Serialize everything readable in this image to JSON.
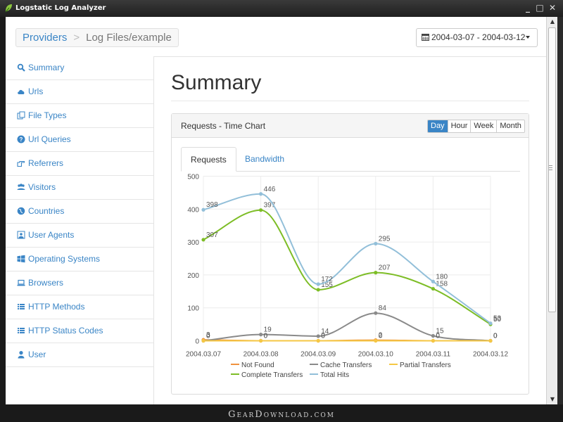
{
  "window": {
    "title": "Logstatic Log Analyzer",
    "brand_color": "#3a85c6",
    "icon": "leaf-icon"
  },
  "breadcrumb": {
    "root": "Providers",
    "separator": ">",
    "current": "Log Files/example"
  },
  "date_range": {
    "label": "2004-03-07 - 2004-03-12",
    "icon": "calendar-icon"
  },
  "sidebar": {
    "items": [
      {
        "label": "Summary",
        "icon": "search-icon"
      },
      {
        "label": "Urls",
        "icon": "cloud-icon"
      },
      {
        "label": "File Types",
        "icon": "files-icon"
      },
      {
        "label": "Url Queries",
        "icon": "question-icon"
      },
      {
        "label": "Referrers",
        "icon": "hand-pointer-icon"
      },
      {
        "label": "Visitors",
        "icon": "users-icon"
      },
      {
        "label": "Countries",
        "icon": "globe-icon"
      },
      {
        "label": "User Agents",
        "icon": "user-agent-icon"
      },
      {
        "label": "Operating Systems",
        "icon": "windows-icon"
      },
      {
        "label": "Browsers",
        "icon": "laptop-icon"
      },
      {
        "label": "HTTP Methods",
        "icon": "list-icon"
      },
      {
        "label": "HTTP Status Codes",
        "icon": "list-icon"
      },
      {
        "label": "User",
        "icon": "user-icon"
      }
    ]
  },
  "main": {
    "title": "Summary"
  },
  "panel": {
    "title": "Requests - Time Chart",
    "granularity": [
      "Day",
      "Hour",
      "Week",
      "Month"
    ],
    "active_granularity": "Day",
    "tabs": [
      "Requests",
      "Bandwidth"
    ],
    "active_tab": "Requests"
  },
  "chart_data": {
    "type": "line",
    "categories": [
      "2004.03.07",
      "2004.03.08",
      "2004.03.09",
      "2004.03.10",
      "2004.03.11",
      "2004.03.12"
    ],
    "ylim": [
      0,
      500
    ],
    "yticks": [
      0,
      100,
      200,
      300,
      400,
      500
    ],
    "grid": true,
    "legend_position": "bottom",
    "series": [
      {
        "name": "Not Found",
        "color": "#f0923e",
        "values": [
          3,
          0,
          0,
          2,
          0,
          0
        ]
      },
      {
        "name": "Cache Transfers",
        "color": "#8a8a8a",
        "values": [
          0,
          19,
          14,
          84,
          15,
          0
        ]
      },
      {
        "name": "Partial Transfers",
        "color": "#f5c744",
        "values": [
          0,
          0,
          0,
          0,
          0,
          0
        ]
      },
      {
        "name": "Complete Transfers",
        "color": "#7dbd26",
        "values": [
          307,
          397,
          155,
          207,
          158,
          50
        ]
      },
      {
        "name": "Total Hits",
        "color": "#92bfd9",
        "values": [
          398,
          446,
          172,
          295,
          180,
          53
        ]
      }
    ],
    "point_labels": [
      [
        "3",
        "0",
        "0",
        "2",
        "0",
        "0"
      ],
      [
        "0",
        "19",
        "14",
        "84",
        "15",
        "0"
      ],
      [
        "0",
        "0",
        "0",
        "0",
        "0",
        "0"
      ],
      [
        "307",
        "397",
        "155",
        "207",
        "158",
        "50"
      ],
      [
        "398",
        "446",
        "172",
        "295",
        "180",
        "53"
      ]
    ]
  },
  "watermark": "GearDownload.com"
}
